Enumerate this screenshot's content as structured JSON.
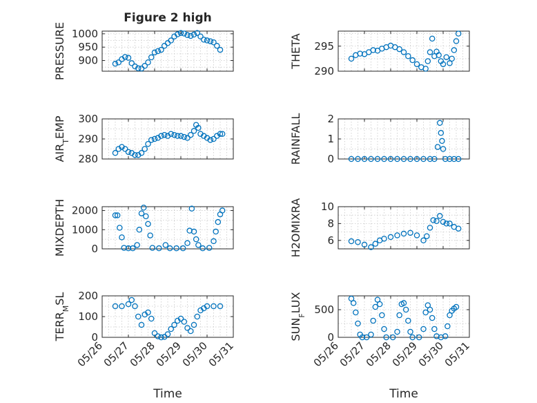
{
  "figure_title": "Figure 2 high",
  "colors": {
    "marker": "#0072BD",
    "axis": "#262626",
    "grid": "#c8c8c8"
  },
  "chart_data": [
    {
      "type": "scatter",
      "id": "pressure",
      "ylabel": "PRESSURE",
      "xlabel": "",
      "ylim": [
        860,
        1010
      ],
      "yticks": [
        900,
        950,
        1000
      ],
      "show_xticklabels": false,
      "title": "Figure 2 high",
      "x_range": [
        "05/26",
        "05/31"
      ],
      "grid": true,
      "points": [
        [
          "05/26 12:00",
          888
        ],
        [
          "05/26 15:00",
          893
        ],
        [
          "05/26 18:00",
          905
        ],
        [
          "05/26 21:00",
          913
        ],
        [
          "05/27 00:00",
          910
        ],
        [
          "05/27 03:00",
          890
        ],
        [
          "05/27 06:00",
          878
        ],
        [
          "05/27 09:00",
          871
        ],
        [
          "05/27 12:00",
          870
        ],
        [
          "05/27 15:00",
          880
        ],
        [
          "05/27 18:00",
          893
        ],
        [
          "05/27 21:00",
          912
        ],
        [
          "05/28 00:00",
          930
        ],
        [
          "05/28 03:00",
          935
        ],
        [
          "05/28 06:00",
          940
        ],
        [
          "05/28 09:00",
          955
        ],
        [
          "05/28 12:00",
          965
        ],
        [
          "05/28 15:00",
          975
        ],
        [
          "05/28 18:00",
          990
        ],
        [
          "05/28 21:00",
          998
        ],
        [
          "05/29 00:00",
          1003
        ],
        [
          "05/29 03:00",
          1001
        ],
        [
          "05/29 06:00",
          995
        ],
        [
          "05/29 09:00",
          992
        ],
        [
          "05/29 12:00",
          997
        ],
        [
          "05/29 15:00",
          1003
        ],
        [
          "05/29 18:00",
          990
        ],
        [
          "05/29 21:00",
          978
        ],
        [
          "05/30 00:00",
          975
        ],
        [
          "05/30 03:00",
          972
        ],
        [
          "05/30 06:00",
          968
        ],
        [
          "05/30 09:00",
          955
        ],
        [
          "05/30 12:00",
          940
        ]
      ]
    },
    {
      "type": "scatter",
      "id": "theta",
      "ylabel": "THETA",
      "xlabel": "",
      "ylim": [
        290,
        298
      ],
      "yticks": [
        290,
        295
      ],
      "show_xticklabels": false,
      "title": "",
      "x_range": [
        "05/26",
        "05/31"
      ],
      "grid": true,
      "points": [
        [
          "05/26 12:00",
          292.5
        ],
        [
          "05/26 16:00",
          293.2
        ],
        [
          "05/26 20:00",
          293.5
        ],
        [
          "05/27 00:00",
          293.4
        ],
        [
          "05/27 04:00",
          293.8
        ],
        [
          "05/27 08:00",
          294.2
        ],
        [
          "05/27 12:00",
          294.1
        ],
        [
          "05/27 16:00",
          294.5
        ],
        [
          "05/27 20:00",
          294.8
        ],
        [
          "05/28 00:00",
          295.1
        ],
        [
          "05/28 04:00",
          294.8
        ],
        [
          "05/28 08:00",
          294.4
        ],
        [
          "05/28 12:00",
          293.8
        ],
        [
          "05/28 16:00",
          293.0
        ],
        [
          "05/28 20:00",
          292.2
        ],
        [
          "05/29 00:00",
          291.4
        ],
        [
          "05/29 04:00",
          290.8
        ],
        [
          "05/29 08:00",
          290.5
        ],
        [
          "05/29 10:00",
          292.0
        ],
        [
          "05/29 12:00",
          293.8
        ],
        [
          "05/29 14:00",
          296.5
        ],
        [
          "05/29 16:00",
          293.0
        ],
        [
          "05/29 18:00",
          293.9
        ],
        [
          "05/29 20:00",
          293.2
        ],
        [
          "05/29 22:00",
          292.0
        ],
        [
          "05/30 00:00",
          291.4
        ],
        [
          "05/30 03:00",
          292.8
        ],
        [
          "05/30 06:00",
          291.6
        ],
        [
          "05/30 08:00",
          292.5
        ],
        [
          "05/30 10:00",
          294.2
        ],
        [
          "05/30 12:00",
          296.0
        ],
        [
          "05/30 14:00",
          297.5
        ]
      ]
    },
    {
      "type": "scatter",
      "id": "airtemp",
      "ylabel": "AIR_TEMP",
      "xlabel": "",
      "ylim": [
        280,
        300
      ],
      "yticks": [
        280,
        290,
        300
      ],
      "show_xticklabels": false,
      "title": "",
      "x_range": [
        "05/26",
        "05/31"
      ],
      "grid": true,
      "points": [
        [
          "05/26 12:00",
          283
        ],
        [
          "05/26 15:00",
          285
        ],
        [
          "05/26 18:00",
          286
        ],
        [
          "05/26 21:00",
          285
        ],
        [
          "05/27 00:00",
          283.5
        ],
        [
          "05/27 03:00",
          283
        ],
        [
          "05/27 06:00",
          282
        ],
        [
          "05/27 09:00",
          282
        ],
        [
          "05/27 12:00",
          283
        ],
        [
          "05/27 15:00",
          285
        ],
        [
          "05/27 18:00",
          287.5
        ],
        [
          "05/27 21:00",
          289.5
        ],
        [
          "05/28 00:00",
          290
        ],
        [
          "05/28 03:00",
          290.5
        ],
        [
          "05/28 06:00",
          291.5
        ],
        [
          "05/28 09:00",
          292
        ],
        [
          "05/28 12:00",
          291.5
        ],
        [
          "05/28 15:00",
          292.5
        ],
        [
          "05/28 18:00",
          292
        ],
        [
          "05/28 21:00",
          291.5
        ],
        [
          "05/29 00:00",
          291.5
        ],
        [
          "05/29 03:00",
          291
        ],
        [
          "05/29 06:00",
          290.5
        ],
        [
          "05/29 09:00",
          292
        ],
        [
          "05/29 12:00",
          294
        ],
        [
          "05/29 14:00",
          297
        ],
        [
          "05/29 16:00",
          295.5
        ],
        [
          "05/29 18:00",
          292.5
        ],
        [
          "05/29 21:00",
          291.5
        ],
        [
          "05/30 00:00",
          290.5
        ],
        [
          "05/30 03:00",
          289.5
        ],
        [
          "05/30 06:00",
          290
        ],
        [
          "05/30 09:00",
          291.5
        ],
        [
          "05/30 12:00",
          292.5
        ],
        [
          "05/30 14:00",
          292.5
        ]
      ]
    },
    {
      "type": "scatter",
      "id": "rainfall",
      "ylabel": "RAINFALL",
      "xlabel": "",
      "ylim": [
        0,
        2
      ],
      "yticks": [
        0,
        1,
        2
      ],
      "show_xticklabels": false,
      "title": "",
      "x_range": [
        "05/26",
        "05/31"
      ],
      "grid": true,
      "points": [
        [
          "05/26 12:00",
          0
        ],
        [
          "05/26 18:00",
          0
        ],
        [
          "05/27 00:00",
          0
        ],
        [
          "05/27 06:00",
          0
        ],
        [
          "05/27 12:00",
          0
        ],
        [
          "05/27 18:00",
          0
        ],
        [
          "05/28 00:00",
          0
        ],
        [
          "05/28 06:00",
          0
        ],
        [
          "05/28 12:00",
          0
        ],
        [
          "05/28 18:00",
          0
        ],
        [
          "05/29 00:00",
          0
        ],
        [
          "05/29 06:00",
          0
        ],
        [
          "05/29 12:00",
          0
        ],
        [
          "05/29 16:00",
          0
        ],
        [
          "05/29 19:00",
          0.6
        ],
        [
          "05/29 21:00",
          1.8
        ],
        [
          "05/29 22:00",
          1.3
        ],
        [
          "05/29 23:00",
          0.9
        ],
        [
          "05/30 00:00",
          0.5
        ],
        [
          "05/30 02:00",
          0
        ],
        [
          "05/30 06:00",
          0
        ],
        [
          "05/30 10:00",
          0
        ],
        [
          "05/30 14:00",
          0
        ]
      ]
    },
    {
      "type": "scatter",
      "id": "mixdepth",
      "ylabel": "MIXDEPTH",
      "xlabel": "",
      "ylim": [
        0,
        2200
      ],
      "yticks": [
        0,
        1000,
        2000
      ],
      "show_xticklabels": false,
      "title": "",
      "x_range": [
        "05/26",
        "05/31"
      ],
      "grid": true,
      "points": [
        [
          "05/26 12:00",
          1750
        ],
        [
          "05/26 14:00",
          1750
        ],
        [
          "05/26 16:00",
          1100
        ],
        [
          "05/26 18:00",
          600
        ],
        [
          "05/26 20:00",
          50
        ],
        [
          "05/27 00:00",
          30
        ],
        [
          "05/27 04:00",
          30
        ],
        [
          "05/27 08:00",
          200
        ],
        [
          "05/27 10:00",
          1000
        ],
        [
          "05/27 12:00",
          1850
        ],
        [
          "05/27 14:00",
          2150
        ],
        [
          "05/27 16:00",
          1700
        ],
        [
          "05/27 18:00",
          1300
        ],
        [
          "05/27 20:00",
          700
        ],
        [
          "05/27 22:00",
          50
        ],
        [
          "05/28 04:00",
          30
        ],
        [
          "05/28 10:00",
          200
        ],
        [
          "05/28 14:00",
          30
        ],
        [
          "05/28 20:00",
          30
        ],
        [
          "05/29 02:00",
          30
        ],
        [
          "05/29 06:00",
          300
        ],
        [
          "05/29 08:00",
          950
        ],
        [
          "05/29 10:00",
          2100
        ],
        [
          "05/29 12:00",
          900
        ],
        [
          "05/29 14:00",
          500
        ],
        [
          "05/29 16:00",
          200
        ],
        [
          "05/29 20:00",
          30
        ],
        [
          "05/30 02:00",
          50
        ],
        [
          "05/30 06:00",
          400
        ],
        [
          "05/30 08:00",
          900
        ],
        [
          "05/30 10:00",
          1400
        ],
        [
          "05/30 12:00",
          1800
        ],
        [
          "05/30 14:00",
          2000
        ]
      ]
    },
    {
      "type": "scatter",
      "id": "h2omixra",
      "ylabel": "H2OMIXRA",
      "xlabel": "",
      "ylim": [
        5,
        10
      ],
      "yticks": [
        6,
        8,
        10
      ],
      "show_xticklabels": false,
      "title": "",
      "x_range": [
        "05/26",
        "05/31"
      ],
      "grid": true,
      "points": [
        [
          "05/26 12:00",
          5.9
        ],
        [
          "05/26 18:00",
          5.8
        ],
        [
          "05/27 00:00",
          5.5
        ],
        [
          "05/27 06:00",
          5.2
        ],
        [
          "05/27 10:00",
          5.6
        ],
        [
          "05/27 14:00",
          6.0
        ],
        [
          "05/27 18:00",
          6.2
        ],
        [
          "05/28 00:00",
          6.4
        ],
        [
          "05/28 06:00",
          6.6
        ],
        [
          "05/28 12:00",
          6.8
        ],
        [
          "05/28 18:00",
          6.9
        ],
        [
          "05/29 00:00",
          6.6
        ],
        [
          "05/29 06:00",
          6.0
        ],
        [
          "05/29 09:00",
          6.5
        ],
        [
          "05/29 12:00",
          7.5
        ],
        [
          "05/29 15:00",
          8.4
        ],
        [
          "05/29 18:00",
          8.3
        ],
        [
          "05/29 21:00",
          8.9
        ],
        [
          "05/30 00:00",
          8.2
        ],
        [
          "05/30 03:00",
          8.0
        ],
        [
          "05/30 06:00",
          8.0
        ],
        [
          "05/30 10:00",
          7.6
        ],
        [
          "05/30 14:00",
          7.4
        ]
      ]
    },
    {
      "type": "scatter",
      "id": "terrmsl",
      "ylabel": "TERR_MSL",
      "xlabel": "Time",
      "ylim": [
        0,
        200
      ],
      "yticks": [
        0,
        100,
        200
      ],
      "show_xticklabels": true,
      "title": "",
      "x_range": [
        "05/26",
        "05/31"
      ],
      "grid": true,
      "points": [
        [
          "05/26 12:00",
          150
        ],
        [
          "05/26 18:00",
          150
        ],
        [
          "05/27 00:00",
          160
        ],
        [
          "05/27 03:00",
          180
        ],
        [
          "05/27 06:00",
          150
        ],
        [
          "05/27 09:00",
          100
        ],
        [
          "05/27 12:00",
          60
        ],
        [
          "05/27 15:00",
          110
        ],
        [
          "05/27 18:00",
          120
        ],
        [
          "05/27 21:00",
          90
        ],
        [
          "05/28 00:00",
          20
        ],
        [
          "05/28 03:00",
          5
        ],
        [
          "05/28 06:00",
          0
        ],
        [
          "05/28 09:00",
          2
        ],
        [
          "05/28 12:00",
          15
        ],
        [
          "05/28 15:00",
          40
        ],
        [
          "05/28 18:00",
          60
        ],
        [
          "05/28 21:00",
          80
        ],
        [
          "05/29 00:00",
          90
        ],
        [
          "05/29 03:00",
          75
        ],
        [
          "05/29 06:00",
          45
        ],
        [
          "05/29 09:00",
          30
        ],
        [
          "05/29 12:00",
          60
        ],
        [
          "05/29 15:00",
          100
        ],
        [
          "05/29 18:00",
          130
        ],
        [
          "05/29 21:00",
          140
        ],
        [
          "05/30 00:00",
          150
        ],
        [
          "05/30 06:00",
          150
        ],
        [
          "05/30 12:00",
          150
        ]
      ]
    },
    {
      "type": "scatter",
      "id": "sunflux",
      "ylabel": "SUN_FLUX",
      "xlabel": "Time",
      "ylim": [
        0,
        750
      ],
      "yticks": [
        0,
        500
      ],
      "show_xticklabels": true,
      "title": "",
      "x_range": [
        "05/26",
        "05/31"
      ],
      "grid": true,
      "points": [
        [
          "05/26 12:00",
          700
        ],
        [
          "05/26 14:00",
          620
        ],
        [
          "05/26 16:00",
          450
        ],
        [
          "05/26 18:00",
          250
        ],
        [
          "05/26 20:00",
          50
        ],
        [
          "05/26 22:00",
          0
        ],
        [
          "05/27 02:00",
          0
        ],
        [
          "05/27 06:00",
          50
        ],
        [
          "05/27 08:00",
          300
        ],
        [
          "05/27 10:00",
          550
        ],
        [
          "05/27 12:00",
          680
        ],
        [
          "05/27 14:00",
          600
        ],
        [
          "05/27 16:00",
          400
        ],
        [
          "05/27 18:00",
          150
        ],
        [
          "05/27 20:00",
          0
        ],
        [
          "05/28 02:00",
          0
        ],
        [
          "05/28 06:00",
          100
        ],
        [
          "05/28 08:00",
          400
        ],
        [
          "05/28 10:00",
          600
        ],
        [
          "05/28 12:00",
          620
        ],
        [
          "05/28 14:00",
          500
        ],
        [
          "05/28 16:00",
          300
        ],
        [
          "05/28 18:00",
          100
        ],
        [
          "05/28 20:00",
          0
        ],
        [
          "05/29 02:00",
          0
        ],
        [
          "05/29 06:00",
          150
        ],
        [
          "05/29 08:00",
          450
        ],
        [
          "05/29 10:00",
          580
        ],
        [
          "05/29 12:00",
          500
        ],
        [
          "05/29 14:00",
          350
        ],
        [
          "05/29 16:00",
          150
        ],
        [
          "05/29 18:00",
          20
        ],
        [
          "05/29 22:00",
          0
        ],
        [
          "05/30 02:00",
          20
        ],
        [
          "05/30 04:00",
          200
        ],
        [
          "05/30 06:00",
          400
        ],
        [
          "05/30 08:00",
          480
        ],
        [
          "05/30 10:00",
          520
        ],
        [
          "05/30 12:00",
          550
        ]
      ]
    }
  ],
  "xticklabels": [
    "05/26",
    "05/27",
    "05/28",
    "05/29",
    "05/30",
    "05/31"
  ]
}
